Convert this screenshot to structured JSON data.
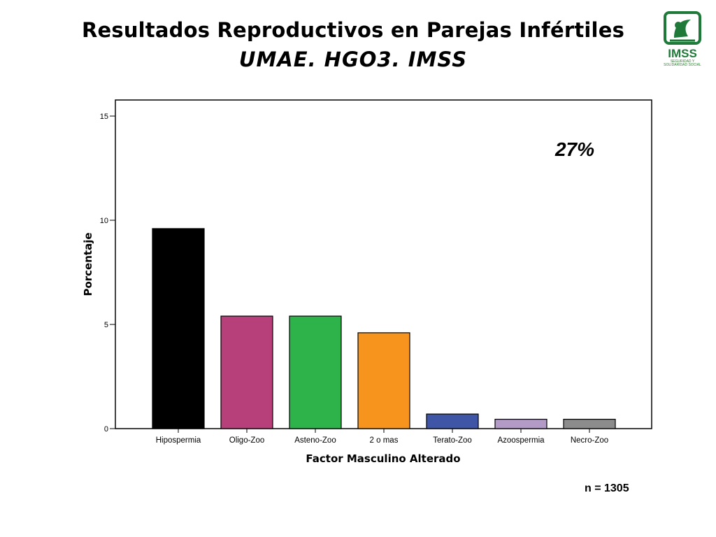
{
  "header": {
    "title": "Resultados Reproductivos en Parejas Infértiles",
    "subtitle": "UMAE. HGO3. IMSS"
  },
  "logo": {
    "text": "IMSS",
    "caption": "SEGURIDAD Y SOLIDARIDAD SOCIAL",
    "color": "#1f7a3a"
  },
  "sample_size": "n = 1305",
  "chart_data": {
    "type": "bar",
    "title": "",
    "xlabel": "Factor Masculino Alterado",
    "ylabel": "Porcentaje",
    "ylim": [
      0,
      15
    ],
    "yticks": [
      0,
      5,
      10,
      15
    ],
    "grid": false,
    "categories": [
      "Hipospermia",
      "Oligo-Zoo",
      "Asteno-Zoo",
      "2 o mas",
      "Terato-Zoo",
      "Azoospermia",
      "Necro-Zoo"
    ],
    "values": [
      9.6,
      5.4,
      5.4,
      4.6,
      0.7,
      0.45,
      0.45
    ],
    "colors": [
      "#000000",
      "#b8407a",
      "#2db34a",
      "#f7941d",
      "#3f56a6",
      "#b39bc8",
      "#8c8c8c"
    ],
    "annotation": "27%"
  }
}
